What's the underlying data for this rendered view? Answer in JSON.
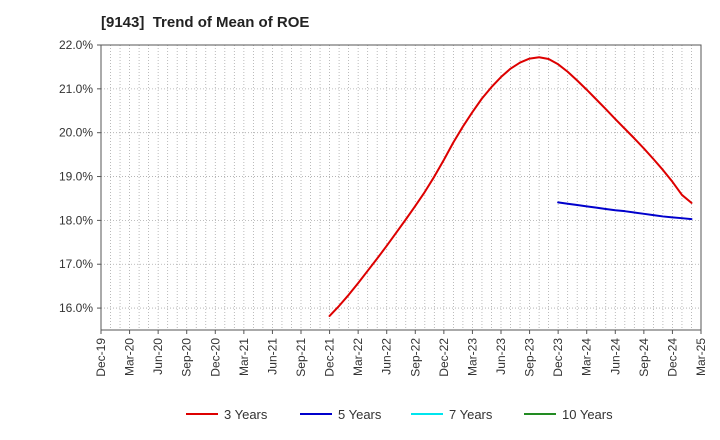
{
  "chart_data": {
    "type": "line",
    "title": "[9143]  Trend of Mean of ROE",
    "xlabel": "",
    "ylabel": "",
    "x_ticks": [
      "Dec-19",
      "Mar-20",
      "Jun-20",
      "Sep-20",
      "Dec-20",
      "Mar-21",
      "Jun-21",
      "Sep-21",
      "Dec-21",
      "Mar-22",
      "Jun-22",
      "Sep-22",
      "Dec-22",
      "Mar-23",
      "Jun-23",
      "Sep-23",
      "Dec-23",
      "Mar-24",
      "Jun-24",
      "Sep-24",
      "Dec-24",
      "Mar-25"
    ],
    "y_ticks": [
      "16.0%",
      "17.0%",
      "18.0%",
      "19.0%",
      "20.0%",
      "21.0%",
      "22.0%"
    ],
    "ylim": [
      15.5,
      22.0
    ],
    "grid": true,
    "legend_position": "bottom",
    "series": [
      {
        "name": "3 Years",
        "color": "#dd0000",
        "points": [
          [
            "Dec-21",
            15.82
          ],
          [
            "Jan-22",
            16.05
          ],
          [
            "Feb-22",
            16.3
          ],
          [
            "Mar-22",
            16.57
          ],
          [
            "Apr-22",
            16.85
          ],
          [
            "May-22",
            17.13
          ],
          [
            "Jun-22",
            17.42
          ],
          [
            "Jul-22",
            17.72
          ],
          [
            "Aug-22",
            18.02
          ],
          [
            "Sep-22",
            18.33
          ],
          [
            "Oct-22",
            18.65
          ],
          [
            "Nov-22",
            19.0
          ],
          [
            "Dec-22",
            19.38
          ],
          [
            "Jan-23",
            19.78
          ],
          [
            "Feb-23",
            20.14
          ],
          [
            "Mar-23",
            20.47
          ],
          [
            "Apr-23",
            20.78
          ],
          [
            "May-23",
            21.04
          ],
          [
            "Jun-23",
            21.27
          ],
          [
            "Jul-23",
            21.46
          ],
          [
            "Aug-23",
            21.6
          ],
          [
            "Sep-23",
            21.69
          ],
          [
            "Oct-23",
            21.72
          ],
          [
            "Nov-23",
            21.68
          ],
          [
            "Dec-23",
            21.56
          ],
          [
            "Jan-24",
            21.39
          ],
          [
            "Feb-24",
            21.19
          ],
          [
            "Mar-24",
            20.98
          ],
          [
            "Apr-24",
            20.76
          ],
          [
            "May-24",
            20.54
          ],
          [
            "Jun-24",
            20.31
          ],
          [
            "Jul-24",
            20.09
          ],
          [
            "Aug-24",
            19.87
          ],
          [
            "Sep-24",
            19.64
          ],
          [
            "Oct-24",
            19.4
          ],
          [
            "Nov-24",
            19.15
          ],
          [
            "Dec-24",
            18.88
          ],
          [
            "Jan-25",
            18.58
          ],
          [
            "Feb-25",
            18.4
          ]
        ]
      },
      {
        "name": "5 Years",
        "color": "#0000cc",
        "points": [
          [
            "Dec-23",
            18.41
          ],
          [
            "Jan-24",
            18.38
          ],
          [
            "Feb-24",
            18.35
          ],
          [
            "Mar-24",
            18.32
          ],
          [
            "Apr-24",
            18.29
          ],
          [
            "May-24",
            18.26
          ],
          [
            "Jun-24",
            18.23
          ],
          [
            "Jul-24",
            18.21
          ],
          [
            "Aug-24",
            18.18
          ],
          [
            "Sep-24",
            18.15
          ],
          [
            "Oct-24",
            18.12
          ],
          [
            "Nov-24",
            18.09
          ],
          [
            "Dec-24",
            18.07
          ],
          [
            "Jan-25",
            18.05
          ],
          [
            "Feb-25",
            18.03
          ]
        ]
      },
      {
        "name": "7 Years",
        "color": "#00e5ee",
        "points": []
      },
      {
        "name": "10 Years",
        "color": "#228b22",
        "points": []
      }
    ]
  }
}
